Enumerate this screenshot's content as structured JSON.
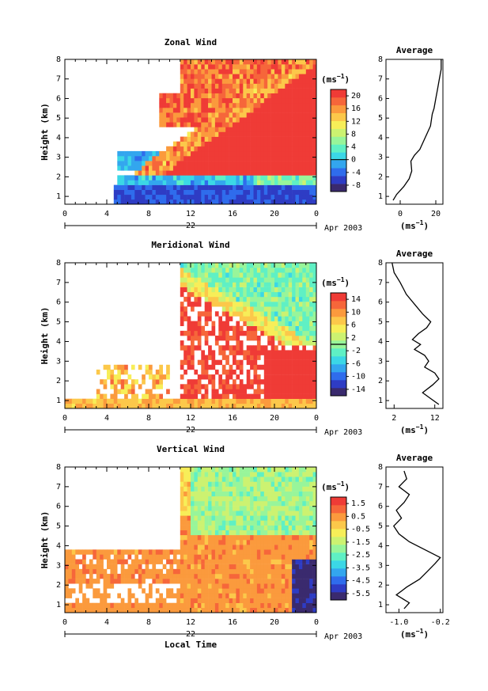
{
  "chart_data": [
    {
      "type": "heatmap",
      "title": "Zonal Wind",
      "xlabel": "",
      "ylabel": "Height (km)",
      "units": "(ms⁻¹)",
      "x_ticks": [
        "0",
        "4",
        "8",
        "12",
        "16",
        "20",
        "0"
      ],
      "x_range": [
        0,
        24
      ],
      "date_label": "22",
      "month_label": "Apr 2003",
      "y_ticks": [
        "1",
        "2",
        "3",
        "4",
        "5",
        "6",
        "7",
        "8"
      ],
      "y_range": [
        0.6,
        8
      ],
      "colorbar": {
        "ticks": [
          "20",
          "16",
          "12",
          "8",
          "4",
          "0",
          "-4",
          "-8"
        ],
        "range": [
          -10,
          22
        ],
        "zero_line": 0
      },
      "average": {
        "title": "Average",
        "x_ticks": [
          "0",
          "20"
        ],
        "x_range": [
          -8,
          24
        ],
        "xlabel": "(ms⁻¹)",
        "profile": [
          [
            -4,
            0.8
          ],
          [
            -2,
            1.1
          ],
          [
            2,
            1.5
          ],
          [
            5,
            1.9
          ],
          [
            6.5,
            2.3
          ],
          [
            6,
            2.8
          ],
          [
            8,
            3.1
          ],
          [
            11,
            3.4
          ],
          [
            13,
            3.8
          ],
          [
            15,
            4.2
          ],
          [
            17,
            4.6
          ],
          [
            18,
            5.2
          ],
          [
            19,
            5.5
          ],
          [
            20,
            6.0
          ],
          [
            21,
            6.5
          ],
          [
            22,
            7.0
          ],
          [
            23,
            7.5
          ],
          [
            23,
            8.0
          ]
        ]
      }
    },
    {
      "type": "heatmap",
      "title": "Meridional Wind",
      "xlabel": "",
      "ylabel": "Height (km)",
      "units": "(ms⁻¹)",
      "x_ticks": [
        "0",
        "4",
        "8",
        "12",
        "16",
        "20",
        "0"
      ],
      "x_range": [
        0,
        24
      ],
      "date_label": "22",
      "month_label": "Apr 2003",
      "y_ticks": [
        "1",
        "2",
        "3",
        "4",
        "5",
        "6",
        "7",
        "8"
      ],
      "y_range": [
        0.6,
        8
      ],
      "colorbar": {
        "ticks": [
          "14",
          "10",
          "6",
          "2",
          "-2",
          "-6",
          "-10",
          "-14"
        ],
        "range": [
          -16,
          16
        ],
        "zero_line": 0
      },
      "average": {
        "title": "Average",
        "x_ticks": [
          "2",
          "12"
        ],
        "x_range": [
          0,
          14
        ],
        "xlabel": "(ms⁻¹)",
        "profile": [
          [
            13,
            0.8
          ],
          [
            11,
            1.1
          ],
          [
            9,
            1.4
          ],
          [
            11.5,
            1.8
          ],
          [
            13,
            2.1
          ],
          [
            12,
            2.4
          ],
          [
            9.5,
            2.7
          ],
          [
            10.5,
            3.0
          ],
          [
            9.5,
            3.3
          ],
          [
            7,
            3.6
          ],
          [
            8.5,
            3.85
          ],
          [
            6.5,
            4.1
          ],
          [
            8,
            4.4
          ],
          [
            10,
            4.7
          ],
          [
            11,
            5.0
          ],
          [
            9,
            5.4
          ],
          [
            7,
            5.9
          ],
          [
            5,
            6.4
          ],
          [
            3.5,
            7.0
          ],
          [
            2,
            7.5
          ],
          [
            1.5,
            8.0
          ]
        ]
      }
    },
    {
      "type": "heatmap",
      "title": "Vertical Wind",
      "xlabel": "Local Time",
      "ylabel": "Height (km)",
      "units": "(ms⁻¹)",
      "x_ticks": [
        "0",
        "4",
        "8",
        "12",
        "16",
        "20",
        "0"
      ],
      "x_range": [
        0,
        24
      ],
      "date_label": "22",
      "month_label": "Apr 2003",
      "y_ticks": [
        "1",
        "2",
        "3",
        "4",
        "5",
        "6",
        "7",
        "8"
      ],
      "y_range": [
        0.6,
        8
      ],
      "colorbar": {
        "ticks": [
          "1.5",
          "0.5",
          "-0.5",
          "-1.5",
          "-2.5",
          "-3.5",
          "-4.5",
          "-5.5"
        ],
        "range": [
          -6,
          2
        ],
        "zero_line": null
      },
      "average": {
        "title": "Average",
        "x_ticks": [
          "-1.0",
          "-0.2"
        ],
        "x_range": [
          -1.25,
          -0.15
        ],
        "xlabel": "(ms⁻¹)",
        "profile": [
          [
            -0.9,
            0.8
          ],
          [
            -0.8,
            1.1
          ],
          [
            -1.05,
            1.5
          ],
          [
            -0.85,
            1.9
          ],
          [
            -0.6,
            2.3
          ],
          [
            -0.45,
            2.7
          ],
          [
            -0.3,
            3.1
          ],
          [
            -0.2,
            3.4
          ],
          [
            -0.5,
            3.8
          ],
          [
            -0.8,
            4.2
          ],
          [
            -1.0,
            4.6
          ],
          [
            -1.1,
            5.0
          ],
          [
            -0.95,
            5.4
          ],
          [
            -1.05,
            5.8
          ],
          [
            -0.9,
            6.2
          ],
          [
            -0.8,
            6.6
          ],
          [
            -1.0,
            7.0
          ],
          [
            -0.85,
            7.4
          ],
          [
            -0.9,
            7.8
          ]
        ]
      }
    }
  ]
}
